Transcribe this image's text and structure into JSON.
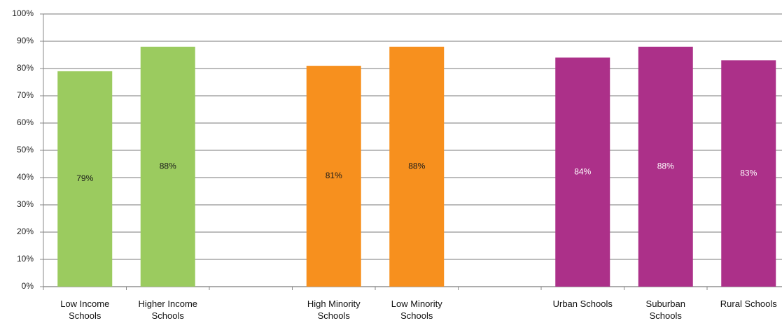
{
  "chart_data": {
    "type": "bar",
    "categories": [
      "Low Income Schools",
      "Higher Income Schools",
      null,
      "High Minority Schools",
      "Low Minority Schools",
      null,
      "Urban Schools",
      "Suburban Schools",
      "Rural Schools"
    ],
    "values": [
      79,
      88,
      null,
      81,
      88,
      null,
      84,
      88,
      83
    ],
    "value_labels": [
      "79%",
      "88%",
      null,
      "81%",
      "88%",
      null,
      "84%",
      "88%",
      "83%"
    ],
    "colors": [
      "#9bcb5f",
      "#9bcb5f",
      null,
      "#f7901e",
      "#f7901e",
      null,
      "#ac3089",
      "#ac3089",
      "#ac3089"
    ],
    "label_colors": [
      "#1a1a1a",
      "#1a1a1a",
      null,
      "#1a1a1a",
      "#1a1a1a",
      null,
      "#ffffff",
      "#ffffff",
      "#ffffff"
    ],
    "ylim": [
      0,
      100
    ],
    "yticks": [
      {
        "value": 0,
        "label": "0%"
      },
      {
        "value": 10,
        "label": "10%"
      },
      {
        "value": 20,
        "label": "20%"
      },
      {
        "value": 30,
        "label": "30%"
      },
      {
        "value": 40,
        "label": "40%"
      },
      {
        "value": 50,
        "label": "50%"
      },
      {
        "value": 60,
        "label": "60%"
      },
      {
        "value": 70,
        "label": "70%"
      },
      {
        "value": 80,
        "label": "80%"
      },
      {
        "value": 90,
        "label": "90%"
      },
      {
        "value": 100,
        "label": "100%"
      }
    ],
    "grid": true
  }
}
